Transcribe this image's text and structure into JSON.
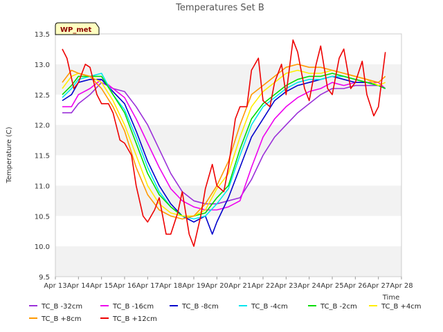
{
  "chart_data": {
    "type": "line",
    "title": "Temperatures Set B",
    "xlabel": "Time",
    "ylabel": "Temperature (C)",
    "ylim": [
      9.5,
      13.5
    ],
    "yticks": [
      9.5,
      10.0,
      10.5,
      11.0,
      11.5,
      12.0,
      12.5,
      13.0,
      13.5
    ],
    "xlim": [
      13,
      28
    ],
    "xticks": [
      "Apr 13",
      "Apr 14",
      "Apr 15",
      "Apr 16",
      "Apr 17",
      "Apr 18",
      "Apr 19",
      "Apr 20",
      "Apr 21",
      "Apr 22",
      "Apr 23",
      "Apr 24",
      "Apr 25",
      "Apr 26",
      "Apr 27",
      "Apr 28"
    ],
    "grid": "horizontal bands",
    "legend": "bottom",
    "badge": "WP_met",
    "series": [
      {
        "name": "TC_B -32cm",
        "color": "#9b30d9",
        "x": [
          13.3,
          13.7,
          14.0,
          14.5,
          15.0,
          15.5,
          16.0,
          16.5,
          17.0,
          17.5,
          18.0,
          18.5,
          19.0,
          19.5,
          20.0,
          20.5,
          21.0,
          21.5,
          22.0,
          22.5,
          23.0,
          23.5,
          24.0,
          24.5,
          25.0,
          25.5,
          26.0,
          26.5,
          27.0,
          27.3
        ],
        "y": [
          12.2,
          12.2,
          12.35,
          12.5,
          12.7,
          12.6,
          12.55,
          12.3,
          12.0,
          11.6,
          11.2,
          10.9,
          10.75,
          10.7,
          10.7,
          10.75,
          10.8,
          11.1,
          11.5,
          11.8,
          12.0,
          12.2,
          12.35,
          12.5,
          12.6,
          12.6,
          12.65,
          12.65,
          12.65,
          12.6
        ]
      },
      {
        "name": "TC_B -16cm",
        "color": "#ee00ee",
        "x": [
          13.3,
          13.7,
          14.0,
          14.5,
          15.0,
          15.5,
          16.0,
          16.5,
          17.0,
          17.5,
          18.0,
          18.5,
          19.0,
          19.5,
          20.0,
          20.5,
          21.0,
          21.5,
          22.0,
          22.5,
          23.0,
          23.5,
          24.0,
          24.5,
          25.0,
          25.5,
          26.0,
          26.5,
          27.0,
          27.3
        ],
        "y": [
          12.3,
          12.3,
          12.5,
          12.6,
          12.75,
          12.6,
          12.45,
          12.1,
          11.7,
          11.3,
          10.95,
          10.75,
          10.65,
          10.6,
          10.6,
          10.65,
          10.75,
          11.3,
          11.8,
          12.1,
          12.3,
          12.45,
          12.55,
          12.6,
          12.7,
          12.65,
          12.7,
          12.7,
          12.7,
          12.6
        ]
      },
      {
        "name": "TC_B -8cm",
        "color": "#0000cc",
        "x": [
          13.3,
          13.7,
          14.0,
          14.5,
          15.0,
          15.5,
          16.0,
          16.5,
          17.0,
          17.5,
          18.0,
          18.5,
          19.0,
          19.5,
          19.8,
          20.0,
          20.5,
          21.0,
          21.5,
          22.0,
          22.5,
          23.0,
          23.5,
          24.0,
          24.5,
          25.0,
          25.5,
          26.0,
          26.5,
          27.0,
          27.3
        ],
        "y": [
          12.4,
          12.5,
          12.7,
          12.75,
          12.75,
          12.55,
          12.35,
          11.9,
          11.4,
          11.0,
          10.7,
          10.5,
          10.4,
          10.5,
          10.2,
          10.4,
          10.8,
          11.3,
          11.8,
          12.1,
          12.4,
          12.55,
          12.65,
          12.7,
          12.75,
          12.8,
          12.75,
          12.7,
          12.7,
          12.65,
          12.6
        ]
      },
      {
        "name": "TC_B -4cm",
        "color": "#00e5ee",
        "x": [
          13.3,
          13.7,
          14.0,
          14.5,
          15.0,
          15.5,
          16.0,
          16.5,
          17.0,
          17.5,
          18.0,
          18.5,
          19.0,
          19.5,
          20.0,
          20.5,
          21.0,
          21.5,
          22.0,
          22.5,
          23.0,
          23.5,
          24.0,
          24.5,
          25.0,
          25.5,
          26.0,
          26.5,
          27.0,
          27.3
        ],
        "y": [
          12.45,
          12.6,
          12.75,
          12.8,
          12.85,
          12.5,
          12.25,
          11.8,
          11.3,
          10.9,
          10.65,
          10.5,
          10.45,
          10.5,
          10.7,
          10.95,
          11.5,
          12.0,
          12.3,
          12.45,
          12.6,
          12.7,
          12.75,
          12.75,
          12.8,
          12.8,
          12.75,
          12.7,
          12.65,
          12.6
        ]
      },
      {
        "name": "TC_B -2cm",
        "color": "#00dd00",
        "x": [
          13.3,
          13.7,
          14.0,
          14.5,
          15.0,
          15.5,
          16.0,
          16.5,
          17.0,
          17.5,
          18.0,
          18.5,
          19.0,
          19.5,
          20.0,
          20.5,
          21.0,
          21.5,
          22.0,
          22.5,
          23.0,
          23.5,
          24.0,
          24.5,
          25.0,
          25.5,
          26.0,
          26.5,
          27.0,
          27.3
        ],
        "y": [
          12.5,
          12.65,
          12.8,
          12.8,
          12.8,
          12.5,
          12.2,
          11.7,
          11.2,
          10.85,
          10.65,
          10.5,
          10.5,
          10.55,
          10.8,
          11.0,
          11.6,
          12.1,
          12.35,
          12.5,
          12.65,
          12.75,
          12.8,
          12.8,
          12.85,
          12.8,
          12.75,
          12.7,
          12.65,
          12.6
        ]
      },
      {
        "name": "TC_B +4cm",
        "color": "#ffee00",
        "x": [
          13.3,
          13.7,
          14.0,
          14.5,
          15.0,
          15.5,
          16.0,
          16.5,
          17.0,
          17.5,
          18.0,
          18.5,
          19.0,
          19.5,
          20.0,
          20.5,
          21.0,
          21.5,
          22.0,
          22.5,
          23.0,
          23.5,
          24.0,
          24.5,
          25.0,
          25.5,
          26.0,
          26.5,
          27.0,
          27.3
        ],
        "y": [
          12.6,
          12.8,
          12.85,
          12.8,
          12.7,
          12.4,
          12.0,
          11.5,
          11.0,
          10.7,
          10.55,
          10.5,
          10.5,
          10.6,
          10.95,
          11.2,
          11.8,
          12.3,
          12.55,
          12.7,
          12.85,
          12.9,
          12.85,
          12.85,
          12.9,
          12.85,
          12.8,
          12.75,
          12.65,
          12.7
        ]
      },
      {
        "name": "TC_B +8cm",
        "color": "#ff9900",
        "x": [
          13.3,
          13.7,
          14.0,
          14.5,
          15.0,
          15.5,
          16.0,
          16.5,
          17.0,
          17.5,
          18.0,
          18.5,
          19.0,
          19.5,
          20.0,
          20.5,
          21.0,
          21.5,
          22.0,
          22.5,
          23.0,
          23.5,
          24.0,
          24.5,
          25.0,
          25.5,
          26.0,
          26.5,
          27.0,
          27.3
        ],
        "y": [
          12.7,
          12.9,
          12.85,
          12.8,
          12.6,
          12.3,
          11.9,
          11.3,
          10.85,
          10.6,
          10.5,
          10.45,
          10.5,
          10.7,
          11.0,
          11.4,
          12.0,
          12.5,
          12.65,
          12.8,
          12.95,
          13.0,
          12.95,
          12.95,
          12.9,
          12.85,
          12.8,
          12.75,
          12.7,
          12.8
        ]
      },
      {
        "name": "TC_B +12cm",
        "color": "#ee0000",
        "x": [
          13.3,
          13.5,
          13.8,
          14.0,
          14.3,
          14.5,
          14.8,
          15.0,
          15.3,
          15.5,
          15.8,
          16.0,
          16.3,
          16.5,
          16.8,
          17.0,
          17.3,
          17.5,
          17.8,
          18.0,
          18.3,
          18.5,
          18.8,
          19.0,
          19.3,
          19.5,
          19.8,
          20.0,
          20.3,
          20.5,
          20.8,
          21.0,
          21.3,
          21.5,
          21.8,
          22.0,
          22.3,
          22.5,
          22.8,
          23.0,
          23.3,
          23.5,
          23.8,
          24.0,
          24.3,
          24.5,
          24.8,
          25.0,
          25.3,
          25.5,
          25.8,
          26.0,
          26.3,
          26.5,
          26.8,
          27.0,
          27.3
        ],
        "y": [
          13.25,
          13.1,
          12.6,
          12.7,
          13.0,
          12.95,
          12.5,
          12.35,
          12.35,
          12.2,
          11.75,
          11.7,
          11.5,
          11.0,
          10.5,
          10.4,
          10.6,
          10.8,
          10.2,
          10.2,
          10.55,
          10.9,
          10.2,
          10.0,
          10.5,
          10.95,
          11.35,
          11.0,
          10.9,
          11.3,
          12.1,
          12.3,
          12.3,
          12.9,
          13.1,
          12.4,
          12.3,
          12.7,
          13.0,
          12.5,
          13.4,
          13.2,
          12.6,
          12.4,
          13.0,
          13.3,
          12.6,
          12.5,
          13.1,
          13.25,
          12.6,
          12.7,
          13.05,
          12.5,
          12.15,
          12.3,
          13.2
        ]
      }
    ]
  }
}
